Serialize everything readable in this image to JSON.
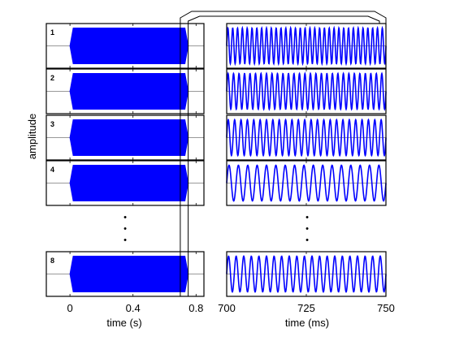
{
  "chart_data": [
    {
      "type": "line",
      "title": "",
      "xlabel": "time (s)",
      "ylabel": "amplitude",
      "xlim": [
        -0.15,
        0.85
      ],
      "xticks": [
        0,
        0.4,
        0.8
      ],
      "xticklabels": [
        "0",
        "0.4",
        "0.8"
      ],
      "signal": {
        "start_s": 0.0,
        "end_s": 0.75,
        "envelope": "constant, short linear ramps at start and end"
      },
      "panels": [
        {
          "label": "1",
          "amplitude": 0.8
        },
        {
          "label": "2",
          "amplitude": 0.8
        },
        {
          "label": "3",
          "amplitude": 0.8
        },
        {
          "label": "4",
          "amplitude": 0.8
        },
        {
          "label": "8",
          "amplitude": 0.8
        }
      ],
      "zoom_window_s": [
        0.7,
        0.75
      ],
      "grid": false,
      "legend": "none"
    },
    {
      "type": "line",
      "title": "",
      "xlabel": "time (ms)",
      "ylabel": "",
      "xlim": [
        700,
        750
      ],
      "xticks": [
        700,
        725,
        750
      ],
      "xticklabels": [
        "700",
        "725",
        "750"
      ],
      "panels": [
        {
          "label": "1",
          "cycles_in_window": 33,
          "amplitude": 0.8
        },
        {
          "label": "2",
          "cycles_in_window": 29,
          "amplitude": 0.8
        },
        {
          "label": "3",
          "cycles_in_window": 25,
          "amplitude": 0.8
        },
        {
          "label": "4",
          "cycles_in_window": 17,
          "amplitude": 0.8
        },
        {
          "label": "8",
          "cycles_in_window": 21,
          "amplitude": 0.8
        }
      ],
      "grid": false,
      "legend": "none"
    }
  ],
  "colors": {
    "signal": "#0000ff",
    "axes": "#000000"
  },
  "ellipsis_marker": "•"
}
